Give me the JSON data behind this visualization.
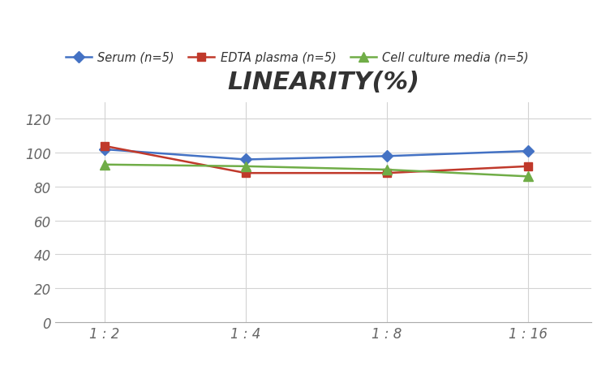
{
  "title": "LINEARITY(%)",
  "x_labels": [
    "1 : 2",
    "1 : 4",
    "1 : 8",
    "1 : 16"
  ],
  "x_positions": [
    0,
    1,
    2,
    3
  ],
  "series": [
    {
      "label": "Serum (n=5)",
      "values": [
        102,
        96,
        98,
        101
      ],
      "color": "#4472C4",
      "marker": "D",
      "markersize": 7,
      "linewidth": 1.8
    },
    {
      "label": "EDTA plasma (n=5)",
      "values": [
        104,
        88,
        88,
        92
      ],
      "color": "#C0392B",
      "marker": "s",
      "markersize": 7,
      "linewidth": 1.8
    },
    {
      "label": "Cell culture media (n=5)",
      "values": [
        93,
        92,
        90,
        86
      ],
      "color": "#70AD47",
      "marker": "^",
      "markersize": 8,
      "linewidth": 1.8
    }
  ],
  "ylim": [
    0,
    130
  ],
  "yticks": [
    0,
    20,
    40,
    60,
    80,
    100,
    120
  ],
  "background_color": "#ffffff",
  "grid_color": "#d3d3d3",
  "title_fontsize": 22,
  "legend_fontsize": 10.5,
  "tick_fontsize": 12
}
